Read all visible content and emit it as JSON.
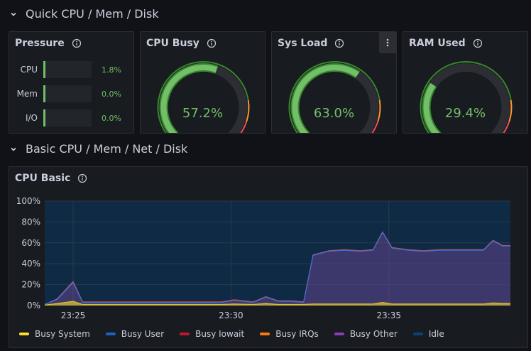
{
  "rows": [
    {
      "title": "Quick CPU / Mem / Disk"
    },
    {
      "title": "Basic CPU / Mem / Net / Disk"
    }
  ],
  "pressure": {
    "title": "Pressure",
    "items": [
      {
        "label": "CPU",
        "value": "1.8%",
        "fraction": 0.018
      },
      {
        "label": "Mem",
        "value": "0.0%",
        "fraction": 0.0
      },
      {
        "label": "I/O",
        "value": "0.0%",
        "fraction": 0.0
      }
    ]
  },
  "gauges": [
    {
      "title": "CPU Busy",
      "value": "57.2%",
      "fraction": 0.572,
      "has_menu": false
    },
    {
      "title": "Sys Load",
      "value": "63.0%",
      "fraction": 0.63,
      "has_menu": true
    },
    {
      "title": "RAM Used",
      "value": "29.4%",
      "fraction": 0.294,
      "has_menu": false
    }
  ],
  "colors": {
    "green": "#73bf69",
    "gauge_green": "#37872d",
    "track": "#2c2e33",
    "orange": "#ff9830",
    "red": "#f2495c"
  },
  "cpu_basic": {
    "title": "CPU Basic",
    "legend": [
      {
        "name": "Busy System",
        "color": "#fade2a"
      },
      {
        "name": "Busy User",
        "color": "#1f60c4"
      },
      {
        "name": "Busy Iowait",
        "color": "#c4162a"
      },
      {
        "name": "Busy IRQs",
        "color": "#ff780a"
      },
      {
        "name": "Busy Other",
        "color": "#8f3bb8"
      },
      {
        "name": "Idle",
        "color": "#0a437c"
      }
    ]
  },
  "chart_data": {
    "type": "area",
    "title": "CPU Basic",
    "ylim": [
      0,
      100
    ],
    "yticks": [
      "0%",
      "20%",
      "40%",
      "60%",
      "80%",
      "100%"
    ],
    "xticks": [
      {
        "label": "23:25",
        "x": 0.9
      },
      {
        "label": "23:30",
        "x": 5.9
      },
      {
        "label": "23:35",
        "x": 10.9
      }
    ],
    "xlim": [
      0,
      14.75
    ],
    "x": [
      0,
      0.4,
      0.9,
      1.2,
      2,
      3,
      4,
      5,
      5.6,
      6,
      6.6,
      7,
      7.4,
      7.8,
      8.2,
      8.5,
      9,
      9.5,
      10,
      10.4,
      10.7,
      11,
      11.5,
      12,
      12.5,
      13,
      13.5,
      13.9,
      14.2,
      14.5,
      14.75
    ],
    "series": [
      {
        "name": "Busy User",
        "values": [
          1,
          6,
          22,
          3,
          3,
          3,
          3,
          3,
          3,
          5,
          3,
          8,
          4,
          4,
          3,
          48,
          52,
          53,
          52,
          53,
          70,
          55,
          53,
          52,
          53,
          53,
          53,
          53,
          62,
          57,
          57
        ]
      },
      {
        "name": "Busy Iowait",
        "values": [
          0,
          0.5,
          1,
          0.5,
          0.5,
          0.5,
          0.5,
          0.5,
          0.5,
          0.5,
          0.5,
          0.5,
          0.5,
          0.5,
          0.5,
          0.5,
          0.5,
          0.5,
          0.5,
          0.5,
          0.5,
          0.5,
          0.5,
          0.5,
          0.5,
          0.5,
          0.5,
          0.5,
          0.5,
          0.5,
          0.5
        ]
      },
      {
        "name": "Busy System",
        "values": [
          0.5,
          2,
          4,
          1,
          1,
          1,
          1,
          1,
          1,
          1.5,
          1,
          2,
          1,
          1,
          1,
          1.5,
          1.5,
          1.5,
          1.5,
          1.5,
          3,
          1.5,
          1.5,
          1.5,
          1.5,
          1.5,
          1.5,
          1.5,
          2.5,
          2,
          2
        ]
      }
    ]
  }
}
